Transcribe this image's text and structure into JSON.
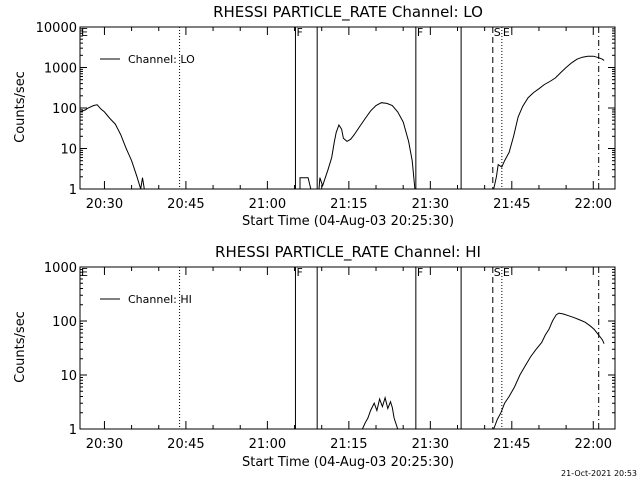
{
  "chart_data": [
    {
      "type": "line",
      "title": "RHESSI PARTICLE_RATE Channel: LO",
      "xlabel": "Start Time (04-Aug-03 20:25:30)",
      "ylabel": "Counts/sec",
      "log_y": true,
      "ylim": [
        1,
        10000
      ],
      "yticks": [
        "1",
        "10",
        "100",
        "1000",
        "10000"
      ],
      "xlim": [
        "20:25:30",
        "22:04:00"
      ],
      "xticks": [
        "20:30",
        "20:45",
        "21:00",
        "21:15",
        "21:30",
        "21:45",
        "22:00"
      ],
      "legend": {
        "position": "top-left",
        "label": "Channel: LO"
      },
      "markers": [
        {
          "label": "F",
          "time": "21:05:10",
          "style": "solid"
        },
        {
          "label": "",
          "time": "21:09:10",
          "style": "solid"
        },
        {
          "label": "F",
          "time": "21:27:20",
          "style": "solid"
        },
        {
          "label": "",
          "time": "21:35:40",
          "style": "solid"
        },
        {
          "label": "S",
          "time": "21:41:30",
          "style": "dashed"
        },
        {
          "label": "E",
          "time": "21:43:10",
          "style": "dotted"
        },
        {
          "label": "",
          "time": "20:43:50",
          "style": "dotted"
        },
        {
          "label": "",
          "time": "22:01:00",
          "style": "dashdot"
        }
      ],
      "series": [
        {
          "segments": [
            [
              [
                "20:25:30",
                80
              ],
              [
                "20:26:30",
                90
              ],
              [
                "20:27:00",
                100
              ],
              [
                "20:28:00",
                115
              ],
              [
                "20:28:40",
                120
              ],
              [
                "20:29:20",
                95
              ],
              [
                "20:30:00",
                80
              ],
              [
                "20:31:00",
                55
              ],
              [
                "20:32:00",
                40
              ],
              [
                "20:33:00",
                22
              ],
              [
                "20:34:00",
                10
              ],
              [
                "20:35:00",
                5
              ],
              [
                "20:36:00",
                2
              ],
              [
                "20:36:40",
                1
              ],
              [
                "20:37:00",
                1.9
              ],
              [
                "20:37:20",
                1
              ]
            ],
            [
              [
                "21:06:00",
                1
              ],
              [
                "21:06:00",
                1.9
              ],
              [
                "21:07:30",
                1.9
              ],
              [
                "21:08:00",
                1
              ]
            ],
            [
              [
                "21:09:30",
                1
              ],
              [
                "21:09:40",
                1.9
              ],
              [
                "21:10:10",
                1.2
              ],
              [
                "21:10:40",
                1.9
              ],
              [
                "21:11:10",
                3
              ],
              [
                "21:11:50",
                6
              ],
              [
                "21:12:20",
                15
              ],
              [
                "21:12:40",
                25
              ],
              [
                "21:13:10",
                38
              ],
              [
                "21:13:40",
                30
              ],
              [
                "21:14:00",
                18
              ],
              [
                "21:14:40",
                15
              ],
              [
                "21:15:20",
                17
              ],
              [
                "21:16:00",
                22
              ],
              [
                "21:17:00",
                35
              ],
              [
                "21:18:00",
                55
              ],
              [
                "21:19:00",
                85
              ],
              [
                "21:20:00",
                115
              ],
              [
                "21:21:00",
                135
              ],
              [
                "21:22:00",
                130
              ],
              [
                "21:23:00",
                115
              ],
              [
                "21:24:00",
                80
              ],
              [
                "21:25:00",
                45
              ],
              [
                "21:26:00",
                15
              ],
              [
                "21:26:40",
                5
              ],
              [
                "21:27:10",
                1
              ]
            ],
            [
              [
                "21:41:40",
                1
              ],
              [
                "21:42:10",
                2
              ],
              [
                "21:42:30",
                4
              ],
              [
                "21:43:10",
                3.5
              ],
              [
                "21:43:40",
                5
              ],
              [
                "21:44:30",
                8
              ],
              [
                "21:45:20",
                20
              ],
              [
                "21:46:10",
                60
              ],
              [
                "21:47:00",
                110
              ],
              [
                "21:48:00",
                180
              ],
              [
                "21:49:00",
                240
              ],
              [
                "21:50:00",
                300
              ],
              [
                "21:51:00",
                380
              ],
              [
                "21:52:00",
                450
              ],
              [
                "21:53:00",
                550
              ],
              [
                "21:54:00",
                750
              ],
              [
                "21:55:00",
                1000
              ],
              [
                "21:56:00",
                1300
              ],
              [
                "21:57:00",
                1600
              ],
              [
                "21:58:00",
                1800
              ],
              [
                "21:59:00",
                1900
              ],
              [
                "22:00:00",
                1900
              ],
              [
                "22:01:00",
                1750
              ],
              [
                "22:01:40",
                1600
              ],
              [
                "22:02:00",
                1500
              ]
            ]
          ]
        }
      ]
    },
    {
      "type": "line",
      "title": "RHESSI PARTICLE_RATE Channel: HI",
      "xlabel": "Start Time (04-Aug-03 20:25:30)",
      "ylabel": "Counts/sec",
      "log_y": true,
      "ylim": [
        1,
        1000
      ],
      "yticks": [
        "1",
        "10",
        "100",
        "1000"
      ],
      "xlim": [
        "20:25:30",
        "22:04:00"
      ],
      "xticks": [
        "20:30",
        "20:45",
        "21:00",
        "21:15",
        "21:30",
        "21:45",
        "22:00"
      ],
      "legend": {
        "position": "top-left",
        "label": "Channel: HI"
      },
      "markers": [
        {
          "label": "F",
          "time": "21:05:10",
          "style": "solid"
        },
        {
          "label": "",
          "time": "21:09:10",
          "style": "solid"
        },
        {
          "label": "F",
          "time": "21:27:20",
          "style": "solid"
        },
        {
          "label": "",
          "time": "21:35:40",
          "style": "solid"
        },
        {
          "label": "S",
          "time": "21:41:30",
          "style": "dashed"
        },
        {
          "label": "E",
          "time": "21:43:10",
          "style": "dotted"
        },
        {
          "label": "",
          "time": "20:43:50",
          "style": "dotted"
        },
        {
          "label": "",
          "time": "22:01:00",
          "style": "dashdot"
        }
      ],
      "series": [
        {
          "segments": [
            [
              [
                "21:17:30",
                1
              ],
              [
                "21:18:00",
                1.3
              ],
              [
                "21:18:30",
                1.6
              ],
              [
                "21:19:00",
                2.2
              ],
              [
                "21:19:40",
                3
              ],
              [
                "21:20:10",
                2.2
              ],
              [
                "21:20:40",
                3.6
              ],
              [
                "21:21:10",
                2.6
              ],
              [
                "21:21:40",
                3.8
              ],
              [
                "21:22:10",
                2.4
              ],
              [
                "21:22:40",
                3.2
              ],
              [
                "21:23:00",
                2.5
              ],
              [
                "21:23:20",
                1.6
              ],
              [
                "21:24:00",
                1
              ]
            ],
            [
              [
                "21:41:40",
                1
              ],
              [
                "21:42:20",
                1.5
              ],
              [
                "21:43:00",
                2
              ],
              [
                "21:43:40",
                3
              ],
              [
                "21:44:30",
                4
              ],
              [
                "21:45:30",
                6
              ],
              [
                "21:46:30",
                10
              ],
              [
                "21:47:30",
                15
              ],
              [
                "21:48:30",
                22
              ],
              [
                "21:49:30",
                30
              ],
              [
                "21:50:30",
                40
              ],
              [
                "21:51:10",
                55
              ],
              [
                "21:51:50",
                70
              ],
              [
                "21:52:30",
                100
              ],
              [
                "21:53:10",
                130
              ],
              [
                "21:53:40",
                140
              ],
              [
                "21:54:30",
                135
              ],
              [
                "21:55:30",
                125
              ],
              [
                "21:56:30",
                115
              ],
              [
                "21:57:30",
                105
              ],
              [
                "21:58:30",
                95
              ],
              [
                "21:59:30",
                80
              ],
              [
                "22:00:10",
                70
              ],
              [
                "22:01:00",
                55
              ],
              [
                "22:01:40",
                45
              ],
              [
                "22:02:00",
                38
              ]
            ]
          ]
        }
      ]
    }
  ],
  "footer": {
    "timestamp": "21-Oct-2021 20:53"
  }
}
